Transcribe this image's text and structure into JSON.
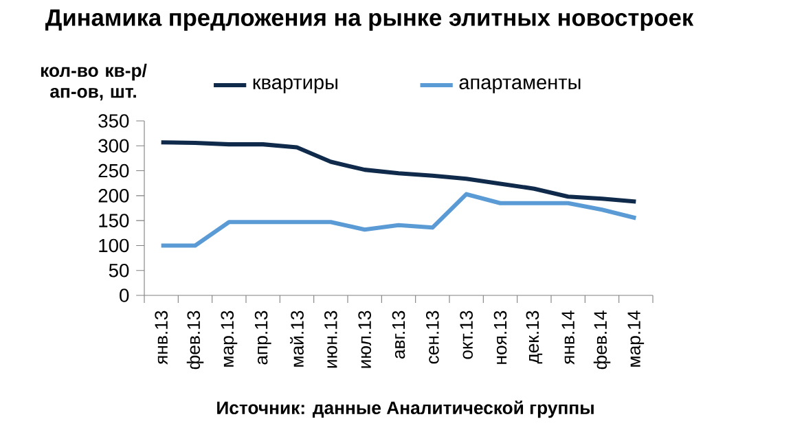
{
  "chart_data": {
    "type": "line",
    "title": "Динамика предложения на рынке элитных новостроек",
    "ylabel": "кол-во кв-р/ ап-ов, шт.",
    "categories": [
      "янв.13",
      "фев.13",
      "мар.13",
      "апр.13",
      "май.13",
      "июн.13",
      "июл.13",
      "авг.13",
      "сен.13",
      "окт.13",
      "ноя.13",
      "дек.13",
      "янв.14",
      "фев.14",
      "мар.14"
    ],
    "series": [
      {
        "name": "квартиры",
        "color": "#0f2a4a",
        "values": [
          307,
          306,
          303,
          303,
          297,
          268,
          252,
          245,
          240,
          234,
          224,
          214,
          198,
          194,
          188
        ]
      },
      {
        "name": "апартаменты",
        "color": "#5b9bd5",
        "values": [
          100,
          100,
          147,
          147,
          147,
          147,
          132,
          141,
          136,
          203,
          185,
          185,
          185,
          172,
          155
        ]
      }
    ],
    "ylim": [
      0,
      350
    ],
    "yticks": [
      0,
      50,
      100,
      150,
      200,
      250,
      300,
      350
    ],
    "grid": false,
    "legend": "top",
    "marker": "none",
    "line_style": "solid",
    "annotations": [
      "Источник: данные Аналитической группы"
    ]
  }
}
